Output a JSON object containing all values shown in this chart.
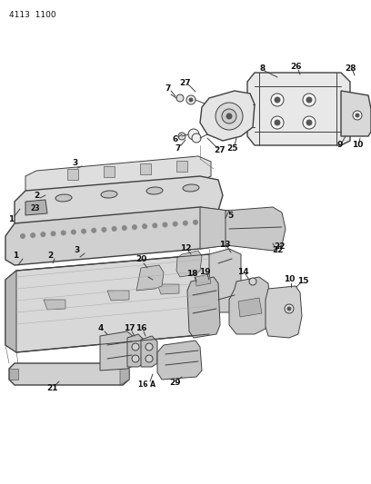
{
  "title": "4113 1100",
  "bg_color": "#ffffff",
  "lc": "#404040",
  "fig_width": 4.08,
  "fig_height": 5.33,
  "dpi": 100
}
